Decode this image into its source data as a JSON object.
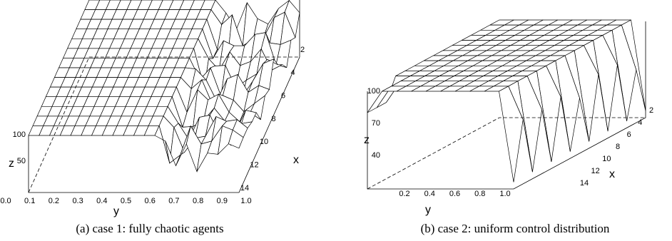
{
  "panels": [
    {
      "caption": "(a) case 1: fully chaotic agents",
      "z_label": "z",
      "y_label": "y",
      "x_label": "x",
      "z_ticks": [
        "100",
        "50"
      ],
      "y_ticks": [
        "0.0",
        "0.1",
        "0.2",
        "0.3",
        "0.4",
        "0.5",
        "0.6",
        "0.7",
        "0.8",
        "0.9",
        "1.0"
      ],
      "x_ticks": [
        "2",
        "4",
        "6",
        "8",
        "10",
        "12",
        "14"
      ]
    },
    {
      "caption": "(b) case 2: uniform control distribution",
      "z_label": "z",
      "y_label": "y",
      "x_label": "x",
      "z_ticks": [
        "100",
        "70",
        "40"
      ],
      "y_ticks": [
        "0.2",
        "0.4",
        "0.6",
        "0.8",
        "1.0"
      ],
      "x_ticks": [
        "2",
        "4",
        "6",
        "8",
        "10",
        "12",
        "14"
      ]
    }
  ]
}
